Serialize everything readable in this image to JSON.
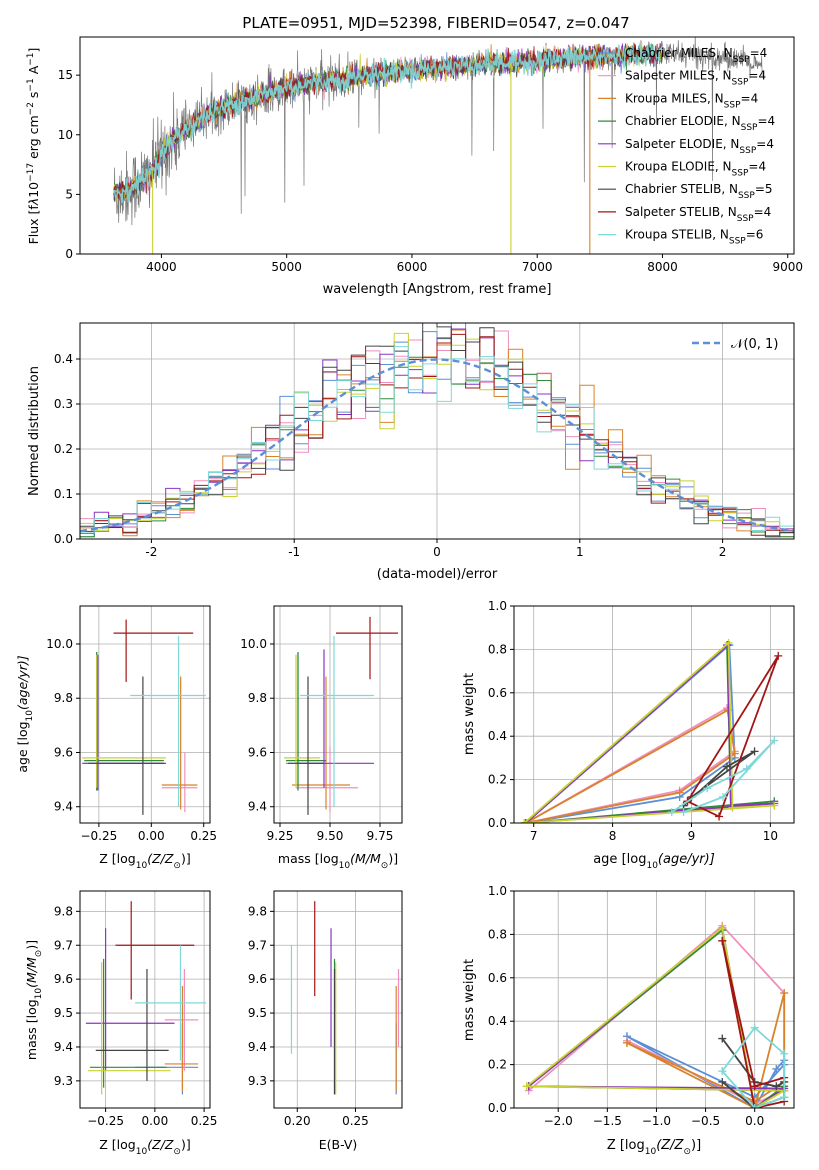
{
  "figure_title": "PLATE=0951, MJD=52398, FIBERID=0547, z=0.047",
  "colors": {
    "Chabrier MILES": "#5b8fd6",
    "Salpeter MILES": "#f08fbf",
    "Kroupa MILES": "#d9822b",
    "Chabrier ELODIE": "#2e8b3a",
    "Salpeter ELODIE": "#8a35c0",
    "Kroupa ELODIE": "#c8d232",
    "Chabrier STELIB": "#444444",
    "Salpeter STELIB": "#a31515",
    "Kroupa STELIB": "#7fd8d8",
    "gaussian": "#5b8fd6"
  },
  "chart_data": [
    {
      "id": "spectrum",
      "type": "line",
      "title": "PLATE=0951, MJD=52398, FIBERID=0547, z=0.047",
      "xlabel": "wavelength [Angstrom, rest frame]",
      "ylabel_parts": [
        "Flux [f",
        "λ",
        "10",
        "−17",
        " erg cm",
        "−2",
        " s",
        "−1",
        " A",
        "−1",
        "]"
      ],
      "xlim": [
        3350,
        9050
      ],
      "ylim": [
        0,
        18.2
      ],
      "xticks": [
        4000,
        5000,
        6000,
        7000,
        8000,
        9000
      ],
      "yticks": [
        0,
        5,
        10,
        15
      ],
      "grid": false,
      "legend_position": "right",
      "legend": [
        {
          "name": "Chabrier MILES",
          "nssp": "4"
        },
        {
          "name": "Salpeter MILES",
          "nssp": "4"
        },
        {
          "name": "Kroupa MILES",
          "nssp": "4"
        },
        {
          "name": "Chabrier ELODIE",
          "nssp": "4"
        },
        {
          "name": "Salpeter ELODIE",
          "nssp": "4"
        },
        {
          "name": "Kroupa ELODIE",
          "nssp": "4"
        },
        {
          "name": "Chabrier STELIB",
          "nssp": "5"
        },
        {
          "name": "Salpeter STELIB",
          "nssp": "4"
        },
        {
          "name": "Kroupa STELIB",
          "nssp": "6"
        }
      ],
      "legend_label_template": [
        "",
        ", N",
        "SSP",
        "="
      ],
      "continuum": {
        "x": [
          3620,
          3750,
          3900,
          4050,
          4200,
          4400,
          4600,
          4800,
          5000,
          5200,
          5400,
          5600,
          5800,
          6000,
          6200,
          6400,
          6600,
          6800,
          7000,
          7200,
          7400,
          7600,
          7800,
          8000,
          8200,
          8400,
          8600,
          8800
        ],
        "y": [
          5.0,
          5.5,
          6.6,
          9.0,
          10.6,
          11.8,
          12.7,
          13.3,
          14.0,
          14.3,
          14.6,
          14.9,
          15.2,
          15.4,
          15.6,
          15.8,
          16.0,
          16.0,
          16.2,
          16.4,
          16.5,
          16.6,
          16.7,
          16.8,
          16.7,
          16.6,
          16.4,
          15.5
        ],
        "data_end": 8800,
        "model_end": 8000
      },
      "dropouts": [
        {
          "x": 3930,
          "color_key": "Kroupa ELODIE"
        },
        {
          "x": 6790,
          "color_key": "Kroupa ELODIE"
        },
        {
          "x": 7420,
          "color_key": "Kroupa MILES"
        }
      ]
    },
    {
      "id": "residuals",
      "type": "histogram",
      "xlabel": "(data-model)/error",
      "ylabel": "Normed distribution",
      "xlim": [
        -2.5,
        2.5
      ],
      "ylim": [
        0,
        0.48
      ],
      "xticks": [
        -2,
        -1,
        0,
        1,
        2
      ],
      "yticks": [
        0.0,
        0.1,
        0.2,
        0.3,
        0.4
      ],
      "grid": true,
      "legend_position": "top-right",
      "legend": {
        "label": "𝒩(0, 1)"
      },
      "bin_width": 0.1,
      "gaussian": {
        "mean": 0,
        "sigma": 1
      }
    },
    {
      "id": "age-vs-z",
      "type": "errorbar",
      "xlabel_parts": [
        "Z [log",
        "10",
        "(Z/Z",
        "⊙",
        ")]"
      ],
      "ylabel_parts": [
        "age  [log",
        "10",
        "(age/yr)]"
      ],
      "xlim": [
        -0.34,
        0.28
      ],
      "ylim": [
        9.34,
        10.14
      ],
      "xticks": [
        -0.25,
        0.0,
        0.25
      ],
      "xtick_labels": [
        "−0.25",
        "0.00",
        "0.25"
      ],
      "yticks": [
        9.4,
        9.6,
        9.8,
        10.0
      ],
      "grid": true,
      "points": [
        {
          "key": "Chabrier MILES",
          "x": -0.26,
          "xlo": -0.32,
          "xhi": 0.05,
          "y": 9.56,
          "ylo": 9.46,
          "yhi": 9.97
        },
        {
          "key": "Salpeter MILES",
          "x": 0.16,
          "xlo": 0.05,
          "xhi": 0.22,
          "y": 9.47,
          "ylo": 9.38,
          "yhi": 9.6
        },
        {
          "key": "Kroupa MILES",
          "x": 0.14,
          "xlo": 0.05,
          "xhi": 0.22,
          "y": 9.48,
          "ylo": 9.39,
          "yhi": 9.88
        },
        {
          "key": "Chabrier ELODIE",
          "x": -0.26,
          "xlo": -0.32,
          "xhi": 0.06,
          "y": 9.57,
          "ylo": 9.46,
          "yhi": 9.97
        },
        {
          "key": "Salpeter ELODIE",
          "x": -0.255,
          "xlo": -0.33,
          "xhi": 0.06,
          "y": 9.56,
          "ylo": 9.46,
          "yhi": 9.96
        },
        {
          "key": "Kroupa ELODIE",
          "x": -0.26,
          "xlo": -0.33,
          "xhi": 0.07,
          "y": 9.58,
          "ylo": 9.47,
          "yhi": 9.96
        },
        {
          "key": "Chabrier STELIB",
          "x": -0.04,
          "xlo": -0.3,
          "xhi": 0.07,
          "y": 9.56,
          "ylo": 9.37,
          "yhi": 9.88
        },
        {
          "key": "Salpeter STELIB",
          "x": -0.12,
          "xlo": -0.18,
          "xhi": 0.2,
          "y": 10.04,
          "ylo": 9.86,
          "yhi": 10.09
        },
        {
          "key": "Kroupa STELIB",
          "x": 0.13,
          "xlo": -0.1,
          "xhi": 0.26,
          "y": 9.81,
          "ylo": 9.4,
          "yhi": 10.03
        }
      ]
    },
    {
      "id": "age-vs-mass",
      "type": "errorbar",
      "xlabel_parts": [
        "mass [log",
        "10",
        "(M/M",
        "⊙",
        ")]"
      ],
      "ylabel_parts": [],
      "xlim": [
        9.22,
        9.86
      ],
      "ylim": [
        9.34,
        10.14
      ],
      "xticks": [
        9.25,
        9.5,
        9.75
      ],
      "xtick_labels": [
        "9.25",
        "9.50",
        "9.75"
      ],
      "yticks": [
        9.4,
        9.6,
        9.8,
        10.0
      ],
      "grid": true,
      "points": [
        {
          "key": "Chabrier MILES",
          "x": 9.34,
          "xlo": 9.28,
          "xhi": 9.47,
          "y": 9.56,
          "ylo": 9.46,
          "yhi": 9.97
        },
        {
          "key": "Salpeter MILES",
          "x": 9.5,
          "xlo": 9.33,
          "xhi": 9.64,
          "y": 9.47,
          "ylo": 9.38,
          "yhi": 9.62
        },
        {
          "key": "Kroupa MILES",
          "x": 9.48,
          "xlo": 9.31,
          "xhi": 9.6,
          "y": 9.48,
          "ylo": 9.39,
          "yhi": 9.88
        },
        {
          "key": "Chabrier ELODIE",
          "x": 9.34,
          "xlo": 9.28,
          "xhi": 9.48,
          "y": 9.57,
          "ylo": 9.46,
          "yhi": 9.97
        },
        {
          "key": "Salpeter ELODIE",
          "x": 9.47,
          "xlo": 9.33,
          "xhi": 9.72,
          "y": 9.56,
          "ylo": 9.47,
          "yhi": 9.98
        },
        {
          "key": "Kroupa ELODIE",
          "x": 9.33,
          "xlo": 9.27,
          "xhi": 9.45,
          "y": 9.58,
          "ylo": 9.47,
          "yhi": 9.96
        },
        {
          "key": "Chabrier STELIB",
          "x": 9.39,
          "xlo": 9.29,
          "xhi": 9.47,
          "y": 9.56,
          "ylo": 9.37,
          "yhi": 9.88
        },
        {
          "key": "Salpeter STELIB",
          "x": 9.7,
          "xlo": 9.53,
          "xhi": 9.84,
          "y": 10.04,
          "ylo": 9.87,
          "yhi": 10.1
        },
        {
          "key": "Kroupa STELIB",
          "x": 9.52,
          "xlo": 9.35,
          "xhi": 9.72,
          "y": 9.81,
          "ylo": 9.4,
          "yhi": 10.03
        }
      ]
    },
    {
      "id": "mass-weight-vs-age",
      "type": "line",
      "xlabel_parts": [
        "age  [log",
        "10",
        "(age/yr)]"
      ],
      "ylabel": "mass weight",
      "xlim": [
        6.75,
        10.3
      ],
      "ylim": [
        0,
        1.0
      ],
      "xticks": [
        7,
        8,
        9,
        10
      ],
      "yticks": [
        0.0,
        0.2,
        0.4,
        0.6,
        0.8,
        1.0
      ],
      "grid": true,
      "series": [
        {
          "key": "Chabrier MILES",
          "x": [
            6.9,
            9.48,
            9.55,
            8.85,
            6.9
          ],
          "y": [
            0.0,
            0.82,
            0.3,
            0.12,
            0.0
          ]
        },
        {
          "key": "Salpeter MILES",
          "x": [
            6.9,
            9.45,
            9.55,
            8.85,
            6.9
          ],
          "y": [
            0.0,
            0.53,
            0.33,
            0.15,
            0.0
          ]
        },
        {
          "key": "Kroupa MILES",
          "x": [
            6.9,
            9.46,
            9.55,
            8.85,
            6.9
          ],
          "y": [
            0.0,
            0.52,
            0.32,
            0.14,
            0.0
          ]
        },
        {
          "key": "Chabrier ELODIE",
          "x": [
            6.9,
            9.45,
            9.5,
            10.05,
            6.9
          ],
          "y": [
            0.0,
            0.82,
            0.08,
            0.1,
            0.0
          ]
        },
        {
          "key": "Salpeter ELODIE",
          "x": [
            6.9,
            9.46,
            9.5,
            10.05,
            6.9
          ],
          "y": [
            0.0,
            0.82,
            0.08,
            0.09,
            0.0
          ]
        },
        {
          "key": "Kroupa ELODIE",
          "x": [
            6.88,
            9.47,
            9.52,
            10.05,
            6.88
          ],
          "y": [
            0.0,
            0.83,
            0.07,
            0.08,
            0.0
          ]
        },
        {
          "key": "Chabrier STELIB",
          "x": [
            8.9,
            9.45,
            9.8,
            9.0,
            8.9
          ],
          "y": [
            0.08,
            0.26,
            0.33,
            0.12,
            0.08
          ]
        },
        {
          "key": "Salpeter STELIB",
          "x": [
            8.95,
            9.35,
            10.1,
            8.95
          ],
          "y": [
            0.1,
            0.03,
            0.77,
            0.1
          ]
        },
        {
          "key": "Kroupa STELIB",
          "x": [
            8.75,
            9.2,
            9.7,
            10.05,
            9.4,
            8.9
          ],
          "y": [
            0.05,
            0.16,
            0.25,
            0.38,
            0.12,
            0.05
          ]
        }
      ]
    },
    {
      "id": "mass-vs-z",
      "type": "errorbar",
      "xlabel_parts": [
        "Z [log",
        "10",
        "(Z/Z",
        "⊙",
        ")]"
      ],
      "ylabel_parts": [
        "mass [log",
        "10",
        "(M/M",
        "⊙",
        ")]"
      ],
      "xlim": [
        -0.38,
        0.28
      ],
      "ylim": [
        9.22,
        9.86
      ],
      "xticks": [
        -0.25,
        0.0,
        0.25
      ],
      "xtick_labels": [
        "−0.25",
        "0.00",
        "0.25"
      ],
      "yticks": [
        9.3,
        9.4,
        9.5,
        9.6,
        9.7,
        9.8
      ],
      "grid": true,
      "points": [
        {
          "key": "Chabrier MILES",
          "x": 0.14,
          "xlo": -0.1,
          "xhi": 0.22,
          "y": 9.34,
          "ylo": 9.26,
          "yhi": 9.47
        },
        {
          "key": "Salpeter MILES",
          "x": 0.15,
          "xlo": 0.05,
          "xhi": 0.22,
          "y": 9.48,
          "ylo": 9.33,
          "yhi": 9.63
        },
        {
          "key": "Kroupa MILES",
          "x": 0.14,
          "xlo": 0.05,
          "xhi": 0.22,
          "y": 9.35,
          "ylo": 9.27,
          "yhi": 9.58
        },
        {
          "key": "Chabrier ELODIE",
          "x": -0.26,
          "xlo": -0.33,
          "xhi": 0.06,
          "y": 9.34,
          "ylo": 9.28,
          "yhi": 9.66
        },
        {
          "key": "Salpeter ELODIE",
          "x": -0.25,
          "xlo": -0.35,
          "xhi": 0.1,
          "y": 9.47,
          "ylo": 9.33,
          "yhi": 9.75
        },
        {
          "key": "Kroupa ELODIE",
          "x": -0.27,
          "xlo": -0.34,
          "xhi": 0.08,
          "y": 9.33,
          "ylo": 9.26,
          "yhi": 9.65
        },
        {
          "key": "Chabrier STELIB",
          "x": -0.04,
          "xlo": -0.3,
          "xhi": 0.07,
          "y": 9.39,
          "ylo": 9.3,
          "yhi": 9.63
        },
        {
          "key": "Salpeter STELIB",
          "x": -0.12,
          "xlo": -0.2,
          "xhi": 0.2,
          "y": 9.7,
          "ylo": 9.54,
          "yhi": 9.83
        },
        {
          "key": "Kroupa STELIB",
          "x": 0.13,
          "xlo": -0.1,
          "xhi": 0.26,
          "y": 9.53,
          "ylo": 9.36,
          "yhi": 9.7
        }
      ]
    },
    {
      "id": "mass-vs-ebv",
      "type": "errorbar",
      "xlabel": "E(B-V)",
      "xlim": [
        0.18,
        0.29
      ],
      "ylim": [
        9.22,
        9.86
      ],
      "xticks": [
        0.2,
        0.25
      ],
      "xtick_labels": [
        "0.20",
        "0.25"
      ],
      "yticks": [
        9.3,
        9.4,
        9.5,
        9.6,
        9.7,
        9.8
      ],
      "grid": true,
      "points": [
        {
          "key": "Chabrier MILES",
          "x": 0.285,
          "xlo": 0.285,
          "xhi": 0.285,
          "y": 9.34,
          "ylo": 9.26,
          "yhi": 9.47
        },
        {
          "key": "Salpeter MILES",
          "x": 0.287,
          "xlo": 0.287,
          "xhi": 0.287,
          "y": 9.48,
          "ylo": 9.4,
          "yhi": 9.63
        },
        {
          "key": "Kroupa MILES",
          "x": 0.285,
          "xlo": 0.285,
          "xhi": 0.285,
          "y": 9.35,
          "ylo": 9.27,
          "yhi": 9.58
        },
        {
          "key": "Chabrier ELODIE",
          "x": 0.232,
          "xlo": 0.232,
          "xhi": 0.232,
          "y": 9.34,
          "ylo": 9.26,
          "yhi": 9.66
        },
        {
          "key": "Salpeter ELODIE",
          "x": 0.229,
          "xlo": 0.229,
          "xhi": 0.229,
          "y": 9.47,
          "ylo": 9.4,
          "yhi": 9.75
        },
        {
          "key": "Kroupa ELODIE",
          "x": 0.233,
          "xlo": 0.233,
          "xhi": 0.233,
          "y": 9.33,
          "ylo": 9.26,
          "yhi": 9.65
        },
        {
          "key": "Chabrier STELIB",
          "x": 0.232,
          "xlo": 0.232,
          "xhi": 0.232,
          "y": 9.39,
          "ylo": 9.26,
          "yhi": 9.63
        },
        {
          "key": "Salpeter STELIB",
          "x": 0.215,
          "xlo": 0.215,
          "xhi": 0.215,
          "y": 9.7,
          "ylo": 9.55,
          "yhi": 9.83
        },
        {
          "key": "Kroupa STELIB",
          "x": 0.195,
          "xlo": 0.195,
          "xhi": 0.195,
          "y": 9.53,
          "ylo": 9.38,
          "yhi": 9.7
        }
      ]
    },
    {
      "id": "mass-weight-vs-z",
      "type": "line",
      "xlabel_parts": [
        "Z [log",
        "10",
        "(Z/Z",
        "⊙",
        ")]"
      ],
      "ylabel": "mass weight",
      "xlim": [
        -2.45,
        0.4
      ],
      "ylim": [
        0,
        1.0
      ],
      "xticks": [
        -2.0,
        -1.5,
        -1.0,
        -0.5,
        0.0
      ],
      "xtick_labels": [
        "−2.0",
        "−1.5",
        "−1.0",
        "−0.5",
        "0.0"
      ],
      "yticks": [
        0.0,
        0.2,
        0.4,
        0.6,
        0.8,
        1.0
      ],
      "grid": true,
      "series": [
        {
          "key": "Chabrier MILES",
          "x": [
            -1.3,
            0.0,
            0.22,
            0.3,
            0.3,
            0.0,
            -1.3
          ],
          "y": [
            0.33,
            0.0,
            0.18,
            0.22,
            0.2,
            0.05,
            0.33
          ]
        },
        {
          "key": "Salpeter MILES",
          "x": [
            -2.3,
            -0.33,
            0.3,
            0.3,
            0.0,
            -1.3
          ],
          "y": [
            0.08,
            0.84,
            0.53,
            0.08,
            0.02,
            0.31
          ]
        },
        {
          "key": "Kroupa MILES",
          "x": [
            -1.3,
            0.0,
            0.3,
            0.3,
            0.0,
            -1.3
          ],
          "y": [
            0.3,
            0.0,
            0.53,
            0.12,
            0.03,
            0.3
          ]
        },
        {
          "key": "Chabrier ELODIE",
          "x": [
            -2.3,
            -0.33,
            0.0,
            0.3,
            0.3,
            -2.3
          ],
          "y": [
            0.1,
            0.82,
            0.0,
            0.1,
            0.08,
            0.1
          ]
        },
        {
          "key": "Salpeter ELODIE",
          "x": [
            -2.3,
            -0.33,
            0.0,
            0.3,
            -2.3
          ],
          "y": [
            0.1,
            0.83,
            0.0,
            0.09,
            0.1
          ]
        },
        {
          "key": "Kroupa ELODIE",
          "x": [
            -2.32,
            -0.33,
            0.0,
            0.3,
            -2.32
          ],
          "y": [
            0.1,
            0.83,
            0.0,
            0.08,
            0.1
          ]
        },
        {
          "key": "Chabrier STELIB",
          "x": [
            -0.33,
            0.0,
            0.22,
            0.3,
            0.3,
            0.0,
            -0.33
          ],
          "y": [
            0.32,
            0.12,
            0.1,
            0.12,
            0.05,
            0.0,
            0.12
          ]
        },
        {
          "key": "Salpeter STELIB",
          "x": [
            -0.33,
            0.0,
            0.3,
            0.3,
            0.0,
            -0.33
          ],
          "y": [
            0.77,
            0.1,
            0.14,
            0.03,
            0.0,
            0.77
          ]
        },
        {
          "key": "Kroupa STELIB",
          "x": [
            -0.33,
            0.0,
            0.3,
            0.3,
            0.0,
            -0.33
          ],
          "y": [
            0.17,
            0.37,
            0.25,
            0.05,
            0.0,
            0.17
          ]
        }
      ]
    }
  ]
}
